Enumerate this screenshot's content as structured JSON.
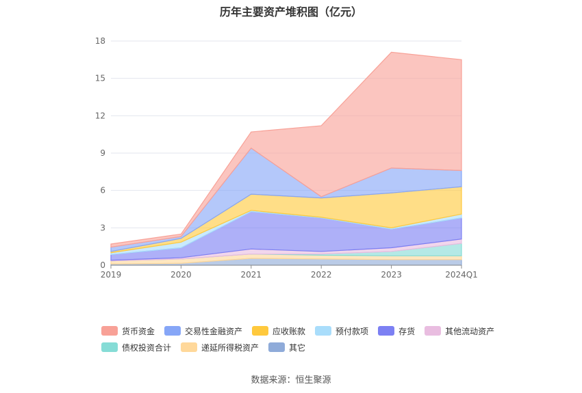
{
  "title": "历年主要资产堆积图（亿元）",
  "source": "数据来源：恒生聚源",
  "chart_data": {
    "type": "area",
    "stacked": true,
    "x": [
      "2019",
      "2020",
      "2021",
      "2022",
      "2023",
      "2024Q1"
    ],
    "ylim": [
      0,
      18
    ],
    "yticks": [
      0,
      3,
      6,
      9,
      12,
      15,
      18
    ],
    "legend_position": "bottom",
    "series": [
      {
        "name": "其它",
        "color": "#8fabd9",
        "values": [
          0.1,
          0.15,
          0.55,
          0.5,
          0.45,
          0.45
        ]
      },
      {
        "name": "递延所得税资产",
        "color": "#ffd89a",
        "values": [
          0.25,
          0.35,
          0.35,
          0.3,
          0.3,
          0.3
        ]
      },
      {
        "name": "债权投资合计",
        "color": "#86dcd6",
        "values": [
          0.0,
          0.0,
          0.0,
          0.1,
          0.35,
          1.0
        ]
      },
      {
        "name": "其他流动资产",
        "color": "#e9bde0",
        "values": [
          0.05,
          0.1,
          0.4,
          0.2,
          0.3,
          0.35
        ]
      },
      {
        "name": "存货",
        "color": "#7c80f3",
        "values": [
          0.45,
          0.8,
          3.0,
          2.7,
          1.5,
          1.7
        ]
      },
      {
        "name": "预付款项",
        "color": "#a9ddfb",
        "values": [
          0.15,
          0.45,
          0.1,
          0.05,
          0.1,
          0.3
        ]
      },
      {
        "name": "应收账款",
        "color": "#ffc93d",
        "values": [
          0.1,
          0.3,
          1.3,
          1.55,
          2.8,
          2.2
        ]
      },
      {
        "name": "交易性金融资产",
        "color": "#86a6f7",
        "values": [
          0.35,
          0.15,
          3.7,
          0.1,
          2.0,
          1.3
        ]
      },
      {
        "name": "货币资金",
        "color": "#f8a197",
        "values": [
          0.25,
          0.2,
          1.3,
          5.7,
          9.3,
          8.9
        ]
      }
    ]
  },
  "legend_rows": [
    [
      "货币资金",
      "交易性金融资产",
      "应收账款",
      "预付款项",
      "存货",
      "其他流动资产"
    ],
    [
      "债权投资合计",
      "递延所得税资产",
      "其它"
    ]
  ]
}
